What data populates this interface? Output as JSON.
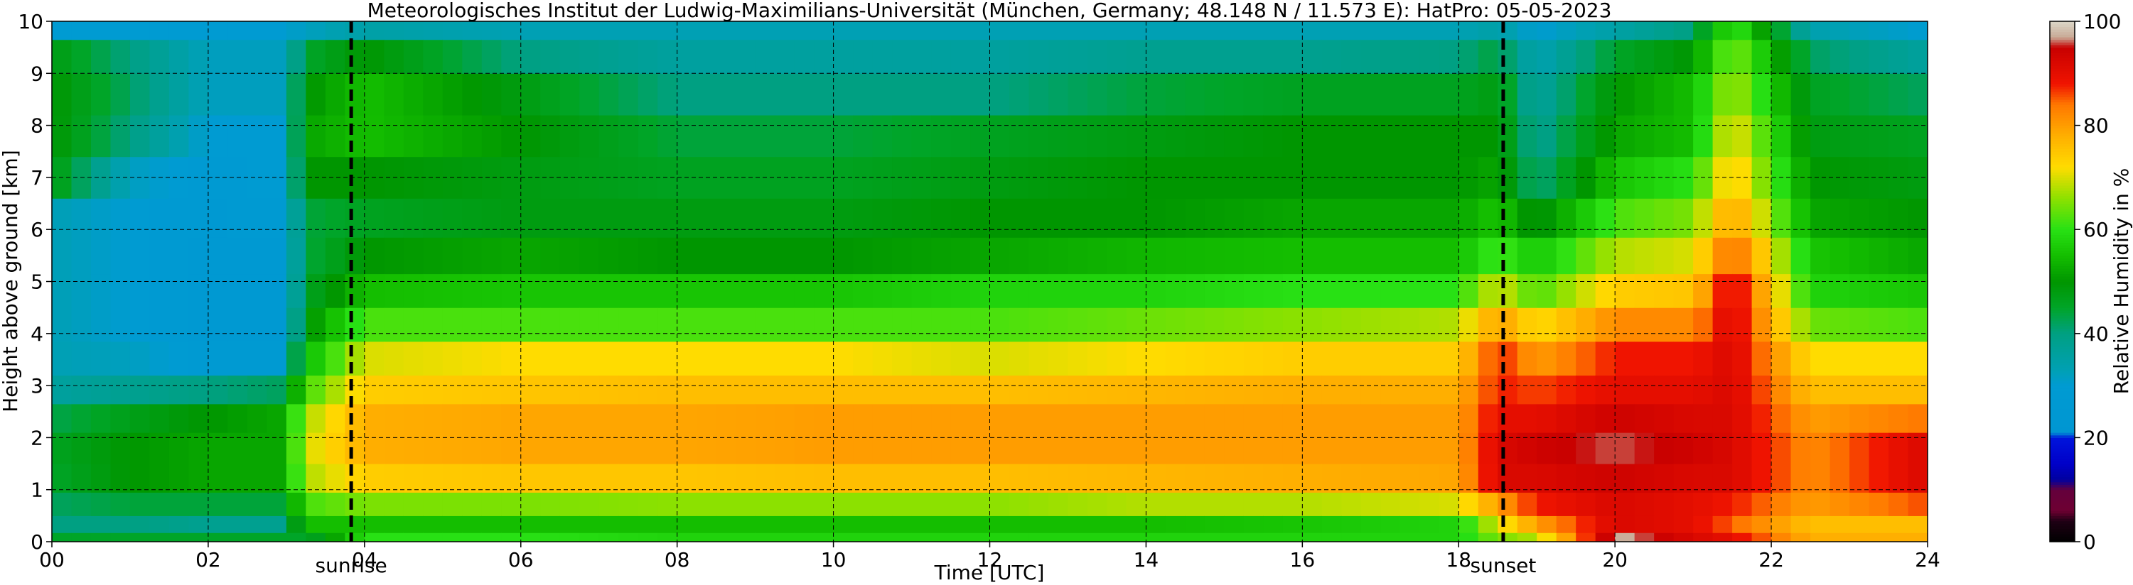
{
  "chart_data": {
    "type": "heatmap",
    "title": "Meteorologisches Institut der Ludwig-Maximilians-Universität (München, Germany; 48.148 N / 11.573 E):    HatPro: 05-05-2023",
    "xlabel": "Time [UTC]",
    "ylabel": "Height above ground [km]",
    "xlim": [
      0,
      24
    ],
    "ylim": [
      0,
      10
    ],
    "x_ticks": [
      0,
      2,
      4,
      6,
      8,
      10,
      12,
      14,
      16,
      18,
      20,
      22,
      24
    ],
    "x_tick_labels": [
      "00",
      "02",
      "04",
      "06",
      "08",
      "10",
      "12",
      "14",
      "16",
      "18",
      "20",
      "22",
      "24"
    ],
    "y_ticks": [
      0,
      1,
      2,
      3,
      4,
      5,
      6,
      7,
      8,
      9,
      10
    ],
    "y_tick_labels": [
      "0",
      "1",
      "2",
      "3",
      "4",
      "5",
      "6",
      "7",
      "8",
      "9",
      "10"
    ],
    "grid": true,
    "markers": [
      {
        "name": "sunrise",
        "x": 3.83
      },
      {
        "name": "sunset",
        "x": 18.57
      }
    ],
    "colorbar": {
      "label": "Relative Humidity in %",
      "range": [
        0,
        100
      ],
      "ticks": [
        0,
        20,
        40,
        60,
        80,
        100
      ],
      "tick_labels": [
        "0",
        "20",
        "40",
        "60",
        "80",
        "100"
      ]
    },
    "profile_heights_km": [
      0.05,
      0.3,
      0.7,
      1.2,
      1.8,
      2.4,
      2.9,
      3.5,
      4.2,
      4.8,
      5.5,
      6.2,
      7.0,
      7.8,
      8.6,
      9.4,
      9.9
    ],
    "relative_humidity_profiles": [
      {
        "time": 0.0,
        "rh": [
          45,
          40,
          42,
          45,
          46,
          43,
          36,
          33,
          33,
          33,
          33,
          33,
          48,
          50,
          50,
          48,
          30
        ]
      },
      {
        "time": 1.0,
        "rh": [
          45,
          40,
          44,
          50,
          50,
          47,
          38,
          32,
          30,
          30,
          30,
          30,
          32,
          40,
          42,
          40,
          30
        ]
      },
      {
        "time": 2.0,
        "rh": [
          45,
          38,
          44,
          52,
          52,
          50,
          40,
          28,
          26,
          26,
          26,
          27,
          28,
          30,
          32,
          32,
          30
        ]
      },
      {
        "time": 2.9,
        "rh": [
          45,
          38,
          44,
          52,
          52,
          52,
          42,
          28,
          26,
          26,
          27,
          28,
          30,
          30,
          32,
          32,
          30
        ]
      },
      {
        "time": 3.3,
        "rh": [
          45,
          55,
          62,
          68,
          70,
          68,
          62,
          55,
          50,
          46,
          44,
          44,
          50,
          52,
          50,
          45,
          32
        ]
      },
      {
        "time": 4.0,
        "rh": [
          60,
          55,
          65,
          74,
          78,
          78,
          74,
          70,
          62,
          55,
          50,
          46,
          50,
          55,
          55,
          50,
          35
        ]
      },
      {
        "time": 6.0,
        "rh": [
          60,
          55,
          65,
          75,
          79,
          79,
          75,
          72,
          62,
          56,
          52,
          48,
          48,
          50,
          48,
          40,
          33
        ]
      },
      {
        "time": 8.0,
        "rh": [
          58,
          55,
          66,
          75,
          79,
          79,
          76,
          72,
          62,
          56,
          50,
          48,
          46,
          44,
          40,
          36,
          33
        ]
      },
      {
        "time": 10.0,
        "rh": [
          58,
          55,
          66,
          76,
          80,
          80,
          76,
          72,
          62,
          56,
          50,
          48,
          46,
          44,
          40,
          36,
          33
        ]
      },
      {
        "time": 12.0,
        "rh": [
          58,
          55,
          66,
          76,
          80,
          80,
          76,
          70,
          62,
          58,
          52,
          50,
          48,
          46,
          40,
          36,
          33
        ]
      },
      {
        "time": 14.0,
        "rh": [
          58,
          55,
          68,
          77,
          80,
          80,
          77,
          72,
          64,
          58,
          54,
          50,
          50,
          48,
          44,
          38,
          33
        ]
      },
      {
        "time": 16.0,
        "rh": [
          58,
          56,
          68,
          78,
          80,
          80,
          78,
          74,
          66,
          60,
          55,
          52,
          50,
          50,
          46,
          38,
          33
        ]
      },
      {
        "time": 18.0,
        "rh": [
          58,
          58,
          70,
          79,
          80,
          80,
          78,
          74,
          68,
          60,
          55,
          52,
          50,
          50,
          46,
          40,
          33
        ]
      },
      {
        "time": 18.5,
        "rh": [
          65,
          70,
          80,
          92,
          92,
          90,
          88,
          88,
          80,
          70,
          62,
          56,
          52,
          50,
          48,
          44,
          35
        ]
      },
      {
        "time": 19.0,
        "rh": [
          68,
          80,
          88,
          92,
          94,
          90,
          86,
          80,
          72,
          62,
          56,
          48,
          40,
          38,
          36,
          33,
          30
        ]
      },
      {
        "time": 20.0,
        "rh": [
          98,
          92,
          92,
          94,
          96,
          94,
          90,
          88,
          82,
          74,
          68,
          62,
          56,
          52,
          50,
          45,
          35
        ]
      },
      {
        "time": 21.0,
        "rh": [
          92,
          90,
          90,
          92,
          94,
          92,
          90,
          88,
          82,
          75,
          70,
          65,
          60,
          55,
          55,
          50,
          40
        ]
      },
      {
        "time": 21.5,
        "rh": [
          90,
          85,
          88,
          92,
          92,
          92,
          92,
          92,
          92,
          92,
          86,
          80,
          75,
          72,
          68,
          66,
          62
        ]
      },
      {
        "time": 22.5,
        "rh": [
          78,
          76,
          80,
          82,
          82,
          80,
          76,
          72,
          64,
          58,
          56,
          52,
          50,
          48,
          46,
          42,
          34
        ]
      },
      {
        "time": 24.0,
        "rh": [
          78,
          76,
          86,
          92,
          92,
          84,
          76,
          72,
          62,
          56,
          52,
          50,
          48,
          46,
          42,
          36,
          30
        ]
      }
    ]
  }
}
